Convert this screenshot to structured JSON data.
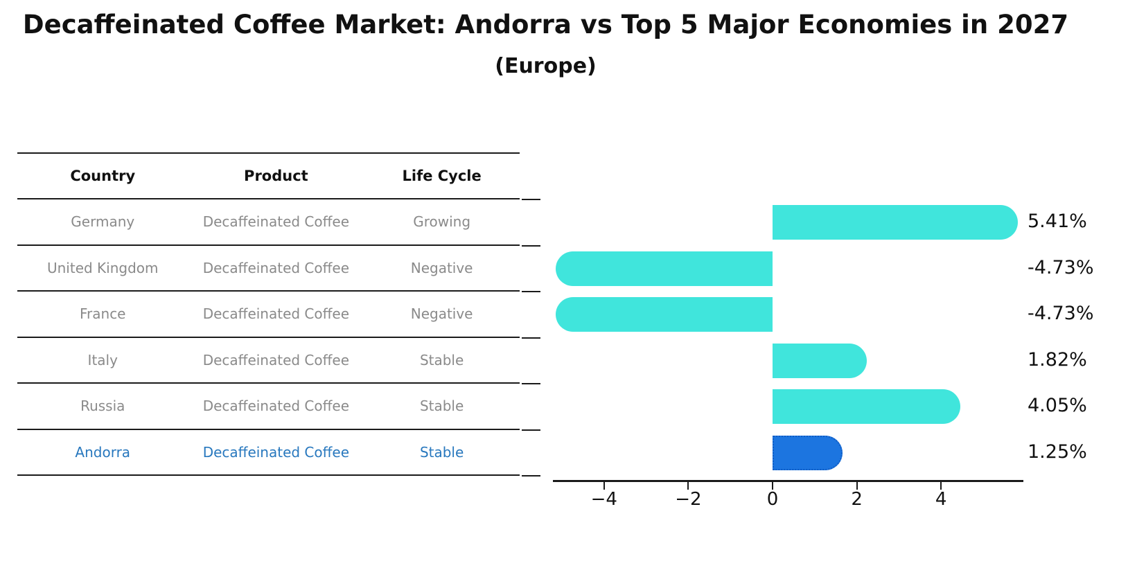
{
  "title": "Decaffeinated Coffee Market: Andorra vs Top 5 Major Economies in 2027",
  "subtitle": "(Europe)",
  "table": {
    "headers": [
      "Country",
      "Product",
      "Life Cycle"
    ],
    "rows": [
      {
        "country": "Germany",
        "product": "Decaffeinated Coffee",
        "life_cycle": "Growing"
      },
      {
        "country": "United Kingdom",
        "product": "Decaffeinated Coffee",
        "life_cycle": "Negative"
      },
      {
        "country": "France",
        "product": "Decaffeinated Coffee",
        "life_cycle": "Negative"
      },
      {
        "country": "Italy",
        "product": "Decaffeinated Coffee",
        "life_cycle": "Stable"
      },
      {
        "country": "Russia",
        "product": "Decaffeinated Coffee",
        "life_cycle": "Stable"
      },
      {
        "country": "Andorra",
        "product": "Decaffeinated Coffee",
        "life_cycle": "Stable"
      }
    ],
    "highlight_row_index": 5,
    "text_color": "#8a8a8a",
    "highlight_text_color": "#2878BE"
  },
  "chart_data": {
    "type": "bar",
    "orientation": "horizontal",
    "title": "Decaffeinated Coffee Market: Andorra vs Top 5 Major Economies in 2027",
    "subtitle": "(Europe)",
    "categories": [
      "Germany",
      "United Kingdom",
      "France",
      "Italy",
      "Russia",
      "Andorra"
    ],
    "values": [
      5.41,
      -4.73,
      -4.73,
      1.82,
      4.05,
      1.25
    ],
    "bar_labels": [
      "5.41%",
      "-4.73%",
      "-4.73%",
      "1.82%",
      "4.05%",
      "1.25%"
    ],
    "x_ticks": [
      -4,
      -2,
      0,
      2,
      4
    ],
    "x_tick_labels": [
      "−4",
      "−2",
      "0",
      "2",
      "4"
    ],
    "xlim": [
      -5.5,
      5.95
    ],
    "grid": false,
    "legend": false,
    "bar_color": "#40E5DC",
    "highlight_index": 5,
    "highlight_color": "#1C75E0",
    "highlight_border_color": "#0F5CC4"
  }
}
